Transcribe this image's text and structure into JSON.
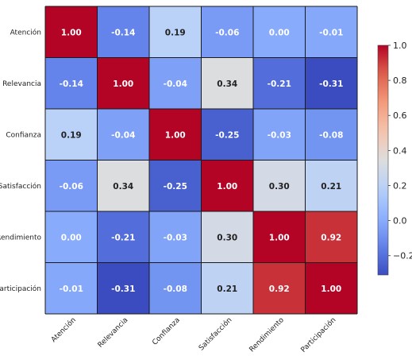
{
  "chart_data": {
    "type": "heatmap",
    "title": "",
    "xlabel": "",
    "ylabel": "",
    "colormap": "coolwarm",
    "x_labels": [
      "Atención",
      "Relevancia",
      "Confianza",
      "Satisfacción",
      "Rendimiento",
      "Participación"
    ],
    "y_labels": [
      "Atención",
      "Relevancia",
      "Confianza",
      "Satisfacción",
      "Rendimiento",
      "Participación"
    ],
    "cell_labels": [
      [
        "1.00",
        "-0.14",
        "0.19",
        "-0.06",
        "0.00",
        "-0.01"
      ],
      [
        "-0.14",
        "1.00",
        "-0.04",
        "0.34",
        "-0.21",
        "-0.31"
      ],
      [
        "0.19",
        "-0.04",
        "1.00",
        "-0.25",
        "-0.03",
        "-0.08"
      ],
      [
        "-0.06",
        "0.34",
        "-0.25",
        "1.00",
        "0.30",
        "0.21"
      ],
      [
        "0.00",
        "-0.21",
        "-0.03",
        "0.30",
        "1.00",
        "0.92"
      ],
      [
        "-0.01",
        "-0.31",
        "-0.08",
        "0.21",
        "0.92",
        "1.00"
      ]
    ],
    "values": [
      [
        1.0,
        -0.14,
        0.19,
        -0.06,
        0.0,
        -0.01
      ],
      [
        -0.14,
        1.0,
        -0.04,
        0.34,
        -0.21,
        -0.31
      ],
      [
        0.19,
        -0.04,
        1.0,
        -0.25,
        -0.03,
        -0.08
      ],
      [
        -0.06,
        0.34,
        -0.25,
        1.0,
        0.3,
        0.21
      ],
      [
        0.0,
        -0.21,
        -0.03,
        0.3,
        1.0,
        0.92
      ],
      [
        -0.01,
        -0.31,
        -0.08,
        0.21,
        0.92,
        1.0
      ]
    ],
    "colorbar": {
      "vmin": -0.31,
      "vmax": 1.0,
      "tick_values": [
        -0.2,
        0.0,
        0.2,
        0.4,
        0.6,
        0.8,
        1.0
      ],
      "tick_labels": [
        "−0.2",
        "0.0",
        "0.2",
        "0.4",
        "0.6",
        "0.8",
        "1.0"
      ],
      "placement": "right"
    }
  }
}
